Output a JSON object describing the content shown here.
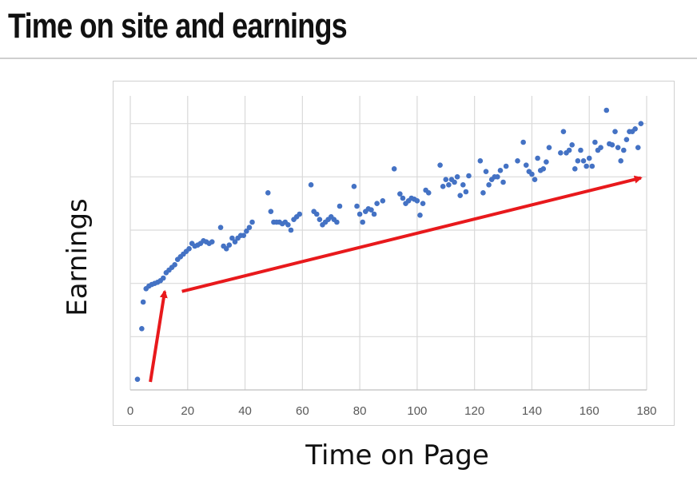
{
  "slide": {
    "title": "Time on site and earnings"
  },
  "chart_data": {
    "type": "scatter",
    "xlabel": "Time on Page",
    "ylabel": "Earnings",
    "xlim": [
      0,
      180
    ],
    "ylim": [
      0,
      6
    ],
    "x_ticks": [
      0,
      20,
      40,
      60,
      80,
      100,
      120,
      140,
      160,
      180
    ],
    "y_tick_labels_shown": false,
    "grid": true,
    "marker_color": "#4472c4",
    "arrow_color": "#e8191c",
    "points": [
      [
        2.5,
        0.2
      ],
      [
        4,
        1.15
      ],
      [
        4.5,
        1.65
      ],
      [
        5.5,
        1.9
      ],
      [
        6.5,
        1.95
      ],
      [
        7.5,
        1.98
      ],
      [
        8.5,
        2.0
      ],
      [
        9.5,
        2.02
      ],
      [
        10.5,
        2.05
      ],
      [
        11.5,
        2.1
      ],
      [
        12.5,
        2.2
      ],
      [
        13.5,
        2.25
      ],
      [
        14.5,
        2.3
      ],
      [
        15.5,
        2.35
      ],
      [
        16.5,
        2.45
      ],
      [
        17.5,
        2.5
      ],
      [
        18.5,
        2.55
      ],
      [
        19.5,
        2.6
      ],
      [
        20.5,
        2.65
      ],
      [
        21.5,
        2.75
      ],
      [
        22.5,
        2.7
      ],
      [
        23.5,
        2.72
      ],
      [
        24.5,
        2.75
      ],
      [
        25.5,
        2.8
      ],
      [
        26.5,
        2.78
      ],
      [
        27.5,
        2.75
      ],
      [
        28.5,
        2.78
      ],
      [
        31.5,
        3.05
      ],
      [
        32.5,
        2.7
      ],
      [
        33.5,
        2.65
      ],
      [
        34.5,
        2.72
      ],
      [
        35.5,
        2.85
      ],
      [
        36.5,
        2.78
      ],
      [
        37.5,
        2.85
      ],
      [
        38.5,
        2.9
      ],
      [
        39.5,
        2.9
      ],
      [
        40.5,
        2.98
      ],
      [
        41.5,
        3.05
      ],
      [
        42.5,
        3.15
      ],
      [
        48,
        3.7
      ],
      [
        49,
        3.35
      ],
      [
        50,
        3.15
      ],
      [
        51,
        3.15
      ],
      [
        52,
        3.15
      ],
      [
        53,
        3.12
      ],
      [
        54,
        3.15
      ],
      [
        55,
        3.1
      ],
      [
        56,
        3.0
      ],
      [
        57,
        3.2
      ],
      [
        58,
        3.25
      ],
      [
        59,
        3.3
      ],
      [
        63,
        3.85
      ],
      [
        64,
        3.35
      ],
      [
        65,
        3.3
      ],
      [
        66,
        3.2
      ],
      [
        67,
        3.1
      ],
      [
        68,
        3.15
      ],
      [
        69,
        3.2
      ],
      [
        70,
        3.25
      ],
      [
        71,
        3.2
      ],
      [
        72,
        3.15
      ],
      [
        73,
        3.45
      ],
      [
        78,
        3.82
      ],
      [
        79,
        3.45
      ],
      [
        80,
        3.3
      ],
      [
        81,
        3.15
      ],
      [
        82,
        3.35
      ],
      [
        83,
        3.4
      ],
      [
        84,
        3.38
      ],
      [
        85,
        3.3
      ],
      [
        86,
        3.5
      ],
      [
        88,
        3.55
      ],
      [
        92,
        4.15
      ],
      [
        94,
        3.68
      ],
      [
        95,
        3.6
      ],
      [
        96,
        3.5
      ],
      [
        97,
        3.55
      ],
      [
        98,
        3.6
      ],
      [
        99,
        3.58
      ],
      [
        100,
        3.55
      ],
      [
        101,
        3.28
      ],
      [
        102,
        3.5
      ],
      [
        103,
        3.75
      ],
      [
        104,
        3.7
      ],
      [
        108,
        4.22
      ],
      [
        109,
        3.82
      ],
      [
        110,
        3.95
      ],
      [
        111,
        3.85
      ],
      [
        112,
        3.95
      ],
      [
        113,
        3.9
      ],
      [
        114,
        4.0
      ],
      [
        115,
        3.65
      ],
      [
        116,
        3.85
      ],
      [
        117,
        3.72
      ],
      [
        118,
        4.02
      ],
      [
        122,
        4.3
      ],
      [
        123,
        3.7
      ],
      [
        124,
        4.1
      ],
      [
        125,
        3.85
      ],
      [
        126,
        3.95
      ],
      [
        127,
        4.0
      ],
      [
        128,
        4.0
      ],
      [
        129,
        4.12
      ],
      [
        130,
        3.9
      ],
      [
        131,
        4.2
      ],
      [
        135,
        4.3
      ],
      [
        137,
        4.65
      ],
      [
        138,
        4.22
      ],
      [
        139,
        4.1
      ],
      [
        140,
        4.05
      ],
      [
        141,
        3.95
      ],
      [
        142,
        4.35
      ],
      [
        143,
        4.12
      ],
      [
        144,
        4.15
      ],
      [
        145,
        4.28
      ],
      [
        146,
        4.55
      ],
      [
        150,
        4.45
      ],
      [
        151,
        4.85
      ],
      [
        152,
        4.45
      ],
      [
        153,
        4.5
      ],
      [
        154,
        4.6
      ],
      [
        155,
        4.15
      ],
      [
        156,
        4.3
      ],
      [
        157,
        4.5
      ],
      [
        158,
        4.3
      ],
      [
        159,
        4.2
      ],
      [
        160,
        4.35
      ],
      [
        161,
        4.2
      ],
      [
        162,
        4.65
      ],
      [
        163,
        4.5
      ],
      [
        164,
        4.55
      ],
      [
        166,
        5.25
      ],
      [
        167,
        4.62
      ],
      [
        168,
        4.6
      ],
      [
        169,
        4.85
      ],
      [
        170,
        4.55
      ],
      [
        171,
        4.3
      ],
      [
        172,
        4.5
      ],
      [
        173,
        4.7
      ],
      [
        174,
        4.85
      ],
      [
        175,
        4.85
      ],
      [
        176,
        4.9
      ],
      [
        177,
        4.55
      ],
      [
        178,
        5.0
      ]
    ],
    "annotations": [
      {
        "type": "arrow",
        "from": [
          7,
          0.15
        ],
        "to": [
          12,
          1.85
        ]
      },
      {
        "type": "arrow",
        "from": [
          18,
          1.85
        ],
        "to": [
          178,
          3.98
        ]
      }
    ]
  }
}
